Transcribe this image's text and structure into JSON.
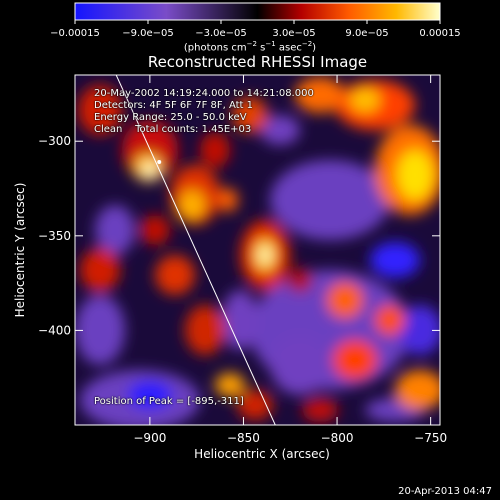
{
  "chart_data": {
    "type": "heatmap",
    "title": "Reconstructed RHESSI Image",
    "xlabel": "Heliocentric X (arcsec)",
    "ylabel": "Heliocentric Y (arcsec)",
    "xlim": [
      -940,
      -745
    ],
    "ylim": [
      -450,
      -265
    ],
    "x_ticks": [
      -900,
      -850,
      -800,
      -750
    ],
    "y_ticks": [
      -300,
      -350,
      -400
    ],
    "x_tick_labels": [
      "−900",
      "−850",
      "−800",
      "−750"
    ],
    "y_tick_labels": [
      "−300",
      "−350",
      "−400"
    ],
    "colorbar": {
      "range": [
        -0.00015,
        0.00015
      ],
      "tick_labels": [
        "−0.00015",
        "−9.0e−05",
        "−3.0e−05",
        "3.0e−05",
        "9.0e−05",
        "0.00015"
      ],
      "unit_prefix": "(photons cm",
      "unit_exp1": "−2",
      "unit_mid": " s",
      "unit_exp2": "−1",
      "unit_mid2": " asec",
      "unit_exp3": "−2",
      "unit_suffix": ")",
      "colors": [
        "#1414ff",
        "#7a4cc8",
        "#000000",
        "#b40000",
        "#ff5a00",
        "#ffb800",
        "#ffffcc"
      ]
    },
    "peak": {
      "x": -895,
      "y": -311
    },
    "limb_line": {
      "x_top": -918,
      "x_bottom": -833
    },
    "grid": false
  },
  "annotations": {
    "line1": "20-May-2002 14:19:24.000 to 14:21:08.000",
    "line2": "Detectors: 4F 5F 6F 7F 8F, Att 1",
    "line3": "Energy Range: 25.0 - 50.0 keV",
    "line4": "Clean    Total counts: 1.45E+03",
    "peak_text": "Position of Peak = [-895,-311]"
  },
  "timestamp": "20-Apr-2013 04:47"
}
